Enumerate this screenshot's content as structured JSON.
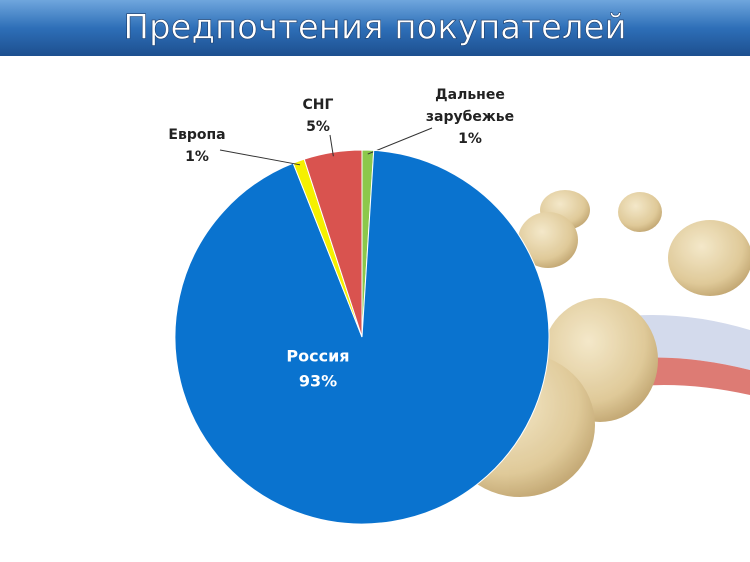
{
  "chart_data": {
    "type": "pie",
    "title": "Предпочтения покупателей",
    "categories": [
      "Дальнее зарубежье",
      "Россия",
      "Европа",
      "СНГ"
    ],
    "values": [
      1,
      93,
      1,
      5
    ],
    "value_labels": [
      "1%",
      "93%",
      "1%",
      "5%"
    ],
    "colors": [
      "#8cc84b",
      "#0a73cf",
      "#f5f000",
      "#d9534f"
    ]
  }
}
